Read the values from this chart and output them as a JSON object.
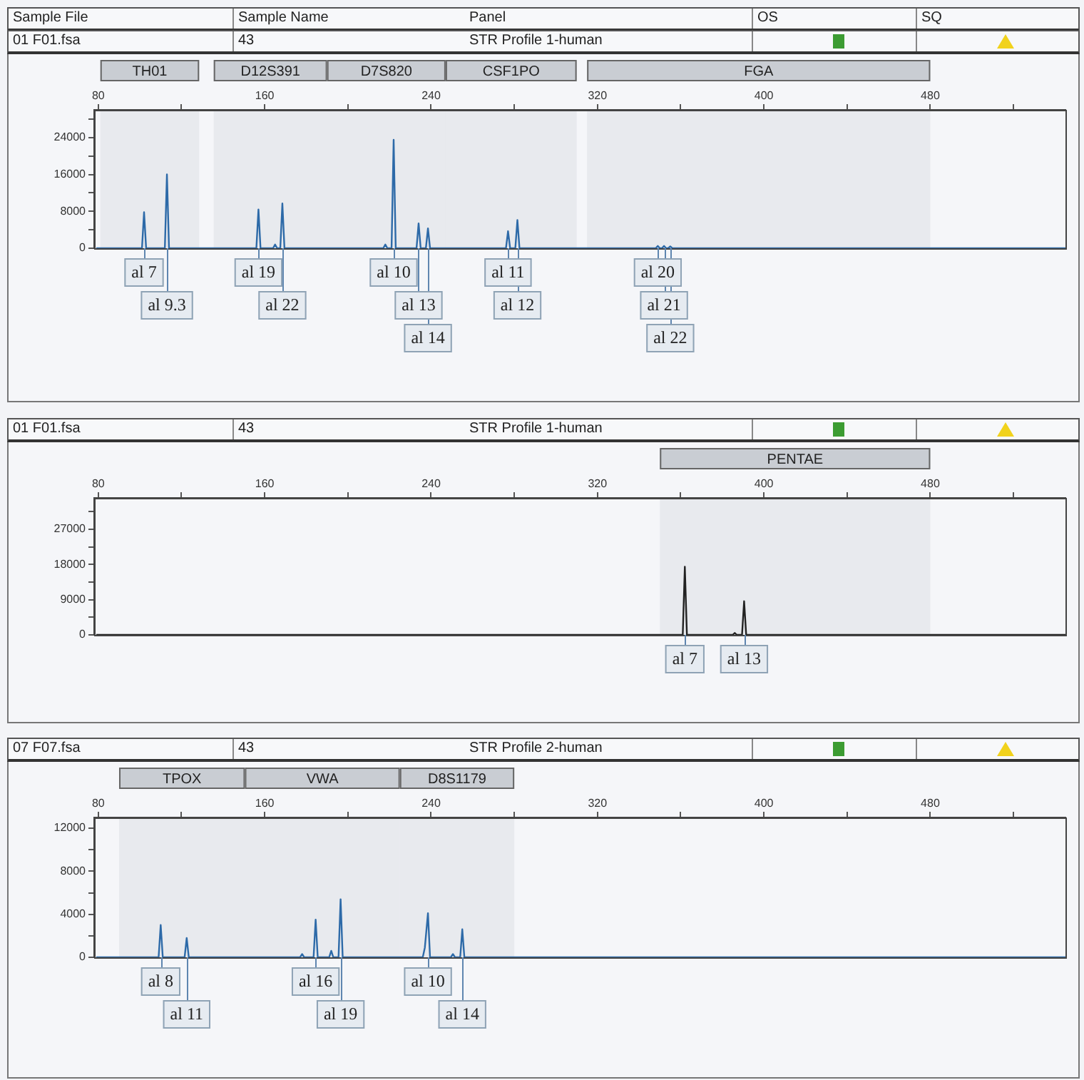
{
  "chart_data": [
    {
      "type": "other",
      "annotations": [
        "Sample File",
        "Sample Name",
        "Panel",
        "OS",
        "SQ"
      ]
    },
    {
      "type": "line",
      "annotations": [
        "01 F01.fsa",
        "43",
        "STR Profile 1-human",
        {
          "text": "al 7",
          "x": 102,
          "y": 0
        },
        {
          "text": "al 9.3",
          "x": 113,
          "y": 0
        },
        {
          "text": "al 19",
          "x": 157,
          "y": 0
        },
        {
          "text": "al 22",
          "x": 168.5,
          "y": 0
        },
        {
          "text": "al 10",
          "x": 222,
          "y": 0
        },
        {
          "text": "al 13",
          "x": 234,
          "y": 0
        },
        {
          "text": "al 14",
          "x": 238.5,
          "y": 0
        },
        {
          "text": "al 11",
          "x": 277,
          "y": 0
        },
        {
          "text": "al 12",
          "x": 281.5,
          "y": 0
        },
        {
          "text": "al 20",
          "x": 349,
          "y": 0
        },
        {
          "text": "al 21",
          "x": 352,
          "y": 0
        },
        {
          "text": "al 22",
          "x": 355,
          "y": 0
        }
      ],
      "bands": [
        {
          "axis": "x",
          "from": 81,
          "to": 128.5,
          "label": "TH01",
          "color": "#c9cdd3"
        },
        {
          "axis": "x",
          "from": 135.5,
          "to": 190,
          "label": "D12S391",
          "color": "#c9cdd3"
        },
        {
          "axis": "x",
          "from": 190,
          "to": 247,
          "label": "D7S820",
          "color": "#c9cdd3"
        },
        {
          "axis": "x",
          "from": 247,
          "to": 310,
          "label": "CSF1PO",
          "color": "#c9cdd3"
        },
        {
          "axis": "x",
          "from": 315,
          "to": 480,
          "label": "FGA",
          "color": "#c9cdd3"
        }
      ],
      "x": [
        79,
        101,
        102,
        103,
        112,
        113,
        114,
        156,
        157,
        158,
        164,
        165,
        166,
        167.5,
        168.5,
        169.5,
        217,
        218,
        219,
        221,
        222,
        223,
        233,
        234,
        235,
        237.5,
        238.5,
        239.5,
        276,
        277,
        278,
        280.5,
        281.5,
        282.5,
        348,
        349,
        350,
        351,
        352,
        353,
        354,
        355,
        356,
        545
      ],
      "values": [
        0,
        0,
        7800,
        0,
        0,
        16000,
        0,
        0,
        8400,
        0,
        0,
        800,
        0,
        0,
        9700,
        0,
        0,
        800,
        0,
        0,
        23500,
        0,
        0,
        5400,
        0,
        0,
        4300,
        0,
        0,
        3700,
        0,
        0,
        6100,
        0,
        0,
        500,
        0,
        0,
        500,
        0,
        0,
        400,
        0,
        0
      ],
      "color": "#2d6aa8",
      "xlim": [
        78,
        545
      ],
      "xticks": [
        80,
        {
          "value": 120,
          "label": null
        },
        160,
        {
          "value": 200,
          "label": null
        },
        240,
        {
          "value": 280,
          "label": null
        },
        320,
        {
          "value": 360,
          "label": null
        },
        400,
        {
          "value": 440,
          "label": null
        },
        480,
        {
          "value": 520,
          "label": null
        }
      ],
      "ylim": [
        0,
        30000
      ],
      "yticks": [
        0,
        {
          "value": 4000,
          "label": null
        },
        8000,
        {
          "value": 12000,
          "label": null
        },
        16000,
        {
          "value": 20000,
          "label": null
        },
        24000,
        {
          "value": 28000,
          "label": null
        }
      ]
    },
    {
      "type": "line",
      "annotations": [
        "01 F01.fsa",
        "43",
        "STR Profile 1-human",
        {
          "text": "al 7",
          "x": 362,
          "y": 0
        },
        {
          "text": "al 13",
          "x": 390.5,
          "y": 0
        }
      ],
      "bands": [
        {
          "axis": "x",
          "from": 350,
          "to": 480,
          "label": "PENTAE",
          "color": "#c9cdd3"
        }
      ],
      "x": [
        79,
        361,
        362,
        363,
        385,
        386,
        387,
        389.5,
        390.5,
        391.5,
        545
      ],
      "values": [
        0,
        0,
        17400,
        0,
        0,
        500,
        0,
        0,
        8600,
        0,
        0
      ],
      "color": "#222222",
      "xlim": [
        78,
        545
      ],
      "xticks": [
        80,
        {
          "value": 120,
          "label": null
        },
        160,
        {
          "value": 200,
          "label": null
        },
        240,
        {
          "value": 280,
          "label": null
        },
        320,
        {
          "value": 360,
          "label": null
        },
        400,
        {
          "value": 440,
          "label": null
        },
        480,
        {
          "value": 520,
          "label": null
        }
      ],
      "ylim": [
        0,
        35000
      ],
      "yticks": [
        0,
        {
          "value": 4500,
          "label": null
        },
        9000,
        {
          "value": 13500,
          "label": null
        },
        18000,
        {
          "value": 22500,
          "label": null
        },
        27000,
        {
          "value": 31500,
          "label": null
        }
      ]
    },
    {
      "type": "line",
      "annotations": [
        "07 F07.fsa",
        "43",
        "STR Profile 2-human",
        {
          "text": "al 8",
          "x": 110,
          "y": 0
        },
        {
          "text": "al 11",
          "x": 122.5,
          "y": 0
        },
        {
          "text": "al 16",
          "x": 184.5,
          "y": 0
        },
        {
          "text": "al 19",
          "x": 196.5,
          "y": 0
        },
        {
          "text": "al 10",
          "x": 238.5,
          "y": 0
        },
        {
          "text": "al 14",
          "x": 255,
          "y": 0
        }
      ],
      "bands": [
        {
          "axis": "x",
          "from": 90,
          "to": 150.5,
          "label": "TPOX",
          "color": "#c9cdd3"
        },
        {
          "axis": "x",
          "from": 150.5,
          "to": 225,
          "label": "VWA",
          "color": "#c9cdd3"
        },
        {
          "axis": "x",
          "from": 225,
          "to": 280,
          "label": "D8S1179",
          "color": "#c9cdd3"
        }
      ],
      "x": [
        79,
        109,
        110,
        111,
        121.5,
        122.5,
        123.5,
        177,
        178,
        179,
        183.5,
        184.5,
        185.5,
        191,
        192,
        193,
        195.5,
        196.5,
        197.5,
        236,
        237,
        238.5,
        239.5,
        249.5,
        250.5,
        251.5,
        254,
        255,
        256,
        545
      ],
      "values": [
        0,
        0,
        3000,
        0,
        0,
        1800,
        0,
        0,
        300,
        0,
        0,
        3500,
        0,
        0,
        600,
        0,
        0,
        5400,
        0,
        0,
        900,
        4100,
        0,
        0,
        300,
        0,
        0,
        2600,
        0,
        0
      ],
      "color": "#2d6aa8",
      "xlim": [
        78,
        545
      ],
      "xticks": [
        80,
        {
          "value": 120,
          "label": null
        },
        160,
        {
          "value": 200,
          "label": null
        },
        240,
        {
          "value": 280,
          "label": null
        },
        320,
        {
          "value": 360,
          "label": null
        },
        400,
        {
          "value": 440,
          "label": null
        },
        480,
        {
          "value": 520,
          "label": null
        }
      ],
      "ylim": [
        0,
        13000
      ],
      "yticks": [
        0,
        {
          "value": 2000,
          "label": null
        },
        4000,
        {
          "value": 6000,
          "label": null
        },
        8000,
        {
          "value": 10000,
          "label": null
        },
        12000
      ]
    }
  ]
}
